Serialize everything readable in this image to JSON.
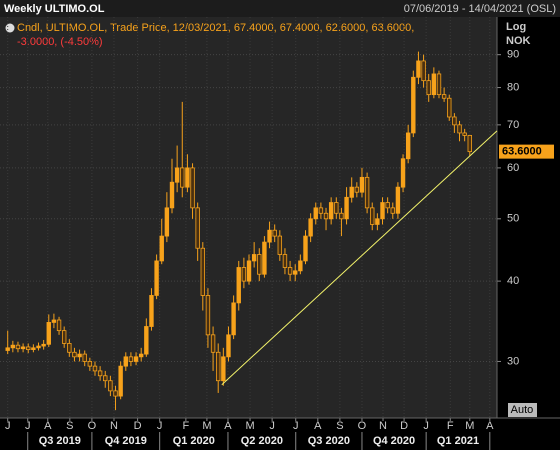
{
  "chart_data": {
    "type": "candlestick",
    "title": "Weekly ULTIMO.OL",
    "date_range": "07/06/2019 - 14/04/2021 (OSL)",
    "scale_label": "Log",
    "unit_label": "NOK",
    "auto_label": "Auto",
    "legend_line1": "Cndl, ULTIMO.OL, Trade Price,  12/03/2021, 67.4000, 67.4000, 62.6000, 63.6000,",
    "legend_line2": "-3.0000, (-4.50%)",
    "color": "#f7a21b",
    "down_fill": "#4a3010",
    "trend_color": "#f2f26a",
    "log_scale": true,
    "grid": true,
    "open": [
      31.2,
      31.5,
      31.8,
      31.4,
      31.6,
      31.3,
      31.5,
      31.7,
      31.9,
      34.5,
      34.8,
      33.5,
      32,
      31,
      30.5,
      30.8,
      30,
      29.5,
      29,
      28.5,
      28,
      27,
      26.5,
      29.5,
      30.5,
      30,
      30.5,
      30.8,
      34,
      38,
      43,
      47,
      52,
      57,
      60,
      56,
      60,
      52,
      45,
      38,
      33,
      31,
      28,
      30.5,
      33,
      37,
      42,
      40,
      43,
      44,
      41,
      46,
      48,
      47,
      44,
      42,
      41,
      41.5,
      43,
      47,
      50,
      52,
      51,
      50,
      53,
      51,
      50,
      54,
      56,
      55,
      58,
      52,
      49,
      50,
      53,
      52,
      51,
      56,
      62,
      68,
      83,
      88,
      82,
      78,
      84,
      78,
      77,
      72,
      70,
      68,
      67.4
    ],
    "high": [
      33.5,
      32.3,
      32.2,
      32,
      32,
      31.9,
      32.1,
      32.4,
      35.5,
      35.6,
      35.2,
      34,
      32.5,
      31.5,
      31.3,
      31.2,
      30.4,
      30,
      29.5,
      29,
      28.5,
      27.5,
      30,
      31,
      31,
      31,
      31.5,
      35,
      39,
      44,
      50,
      55,
      62,
      65,
      76,
      63,
      61,
      53,
      46,
      39,
      34,
      32,
      31.5,
      34,
      38,
      43,
      43.5,
      44,
      46,
      45,
      47,
      49.5,
      49,
      48,
      45,
      43,
      42.5,
      44,
      48,
      51,
      53,
      53,
      52,
      54,
      54,
      52,
      56,
      58,
      57,
      60,
      59,
      53,
      51,
      54,
      54,
      53,
      57,
      63,
      70,
      85,
      91,
      90,
      84,
      86,
      85,
      80,
      78,
      73,
      71,
      69,
      67.4
    ],
    "low": [
      30.8,
      31,
      31,
      31,
      30.9,
      31,
      31.2,
      31.3,
      31.6,
      33.8,
      33,
      31.5,
      30.5,
      30,
      30,
      29.5,
      29,
      28.5,
      28,
      27.3,
      26.5,
      25.2,
      26.2,
      29,
      29.5,
      29.6,
      30,
      30.5,
      33.5,
      37.5,
      42.5,
      46,
      51,
      55,
      54,
      55,
      50,
      43,
      36,
      31.5,
      29,
      26.8,
      27.5,
      30,
      32.5,
      36,
      39,
      39.5,
      42,
      40,
      40.5,
      45,
      46,
      43,
      41,
      40,
      40,
      41,
      42.5,
      46,
      49,
      50,
      48,
      49,
      50,
      47,
      49,
      53,
      54,
      54,
      51,
      48,
      48,
      49,
      51,
      50,
      50,
      55,
      61,
      67,
      81,
      80,
      76,
      77,
      77,
      76,
      71,
      68,
      66,
      66,
      62.6
    ],
    "close": [
      31.5,
      31.8,
      31.4,
      31.6,
      31.3,
      31.5,
      31.7,
      31.9,
      34.5,
      34.8,
      33.5,
      32,
      31,
      30.5,
      30.8,
      30,
      29.5,
      29,
      28.5,
      28,
      27,
      26.5,
      29.5,
      30.5,
      30,
      30.5,
      30.8,
      34,
      38,
      43,
      47,
      52,
      57,
      60,
      56,
      60,
      52,
      45,
      38,
      33,
      31,
      28,
      30.5,
      33,
      37,
      42,
      40,
      43,
      44,
      41,
      46,
      48,
      47,
      44,
      42,
      41,
      41.5,
      43,
      47,
      50,
      52,
      51,
      50,
      53,
      51,
      50,
      54,
      56,
      55,
      58,
      52,
      49,
      50,
      53,
      52,
      51,
      56,
      62,
      68,
      83,
      88,
      82,
      78,
      84,
      78,
      77,
      72,
      70,
      68,
      67.4,
      63.6
    ],
    "last_price": {
      "value": 63.6,
      "label": "63.6000"
    },
    "trendline": {
      "x": [
        41.7,
        95.3
      ],
      "y": [
        27.6,
        68.5
      ]
    },
    "xlim": [
      -1.5,
      95.3
    ],
    "ylim": [
      24.5,
      103
    ],
    "yticks": [
      30,
      40,
      50,
      60,
      70,
      80,
      90
    ],
    "xticks": [
      {
        "value": 0,
        "label": "J"
      },
      {
        "value": 3.9,
        "label": "J"
      },
      {
        "value": 7.8,
        "label": "A"
      },
      {
        "value": 12.1,
        "label": "S"
      },
      {
        "value": 16.4,
        "label": "O"
      },
      {
        "value": 20.7,
        "label": "N"
      },
      {
        "value": 25.3,
        "label": "D"
      },
      {
        "value": 29.6,
        "label": "J"
      },
      {
        "value": 34.7,
        "label": "F"
      },
      {
        "value": 38.8,
        "label": "M"
      },
      {
        "value": 42.9,
        "label": "A"
      },
      {
        "value": 47.2,
        "label": "M"
      },
      {
        "value": 51.5,
        "label": "J"
      },
      {
        "value": 56.1,
        "label": "J"
      },
      {
        "value": 60.4,
        "label": "A"
      },
      {
        "value": 64.7,
        "label": "S"
      },
      {
        "value": 69,
        "label": "O"
      },
      {
        "value": 73.1,
        "label": "N"
      },
      {
        "value": 77.2,
        "label": "D"
      },
      {
        "value": 81.5,
        "label": "J"
      },
      {
        "value": 86.2,
        "label": "F"
      },
      {
        "value": 90,
        "label": "M"
      },
      {
        "value": 93.9,
        "label": "A"
      }
    ],
    "quarter_edges": [
      3.9,
      16.4,
      29.6,
      42.9,
      56.1,
      69,
      81.5,
      93.9
    ],
    "quarter_labels": [
      "Q3 2019",
      "Q4 2019",
      "Q1 2020",
      "Q2 2020",
      "Q3 2020",
      "Q4 2020",
      "Q1 2021"
    ]
  }
}
